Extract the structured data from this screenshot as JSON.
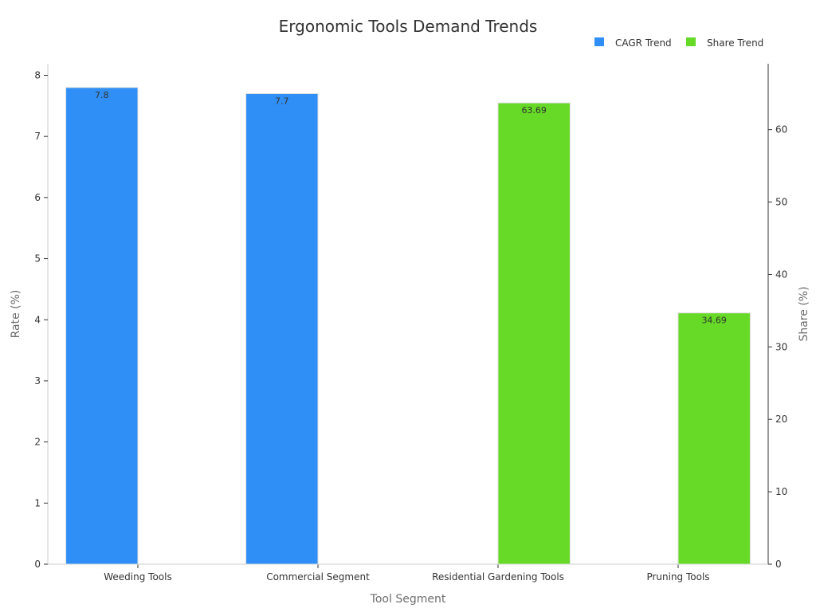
{
  "chart_data": {
    "type": "bar",
    "title": "Ergonomic Tools Demand Trends",
    "xlabel": "Tool Segment",
    "ylabel_left": "Rate (%)",
    "ylabel_right": "Share (%)",
    "categories": [
      "Weeding Tools",
      "Commercial Segment",
      "Residential Gardening Tools",
      "Pruning Tools"
    ],
    "series": [
      {
        "name": "CAGR Trend",
        "axis": "left",
        "color": "#2f8ff7",
        "values": [
          7.8,
          7.7,
          null,
          null
        ],
        "labels": [
          "7.8",
          "7.7",
          "",
          ""
        ]
      },
      {
        "name": "Share Trend",
        "axis": "right",
        "color": "#66da26",
        "values": [
          null,
          null,
          63.69,
          34.69
        ],
        "labels": [
          "",
          "",
          "63.69",
          "34.69"
        ]
      }
    ],
    "ylim_left": [
      0,
      8
    ],
    "yticks_left": [
      0,
      1,
      2,
      3,
      4,
      5,
      6,
      7,
      8
    ],
    "ylim_right": [
      0,
      67.5
    ],
    "yticks_right": [
      0,
      10,
      20,
      30,
      40,
      50,
      60
    ],
    "legend_position": "top-right",
    "grid": false
  }
}
